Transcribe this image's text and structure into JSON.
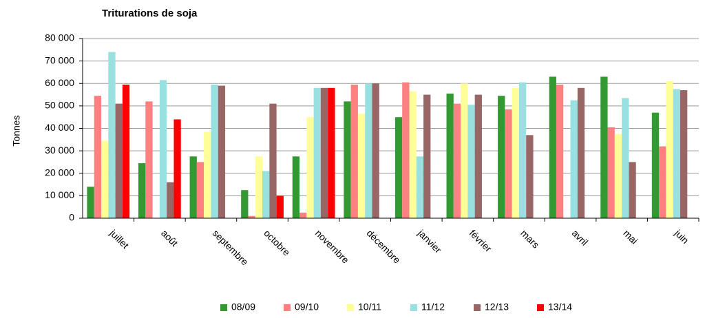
{
  "chart_data": {
    "type": "bar",
    "title": "Triturations de soja",
    "y_label": "Tonnes",
    "categories": [
      "juillet",
      "août",
      "septembre",
      "octobre",
      "novembre",
      "décembre",
      "janvier",
      "février",
      "mars",
      "avril",
      "mai",
      "juin"
    ],
    "series": [
      {
        "name": "08/09",
        "color": "#339933",
        "values": [
          14000,
          24500,
          27500,
          12500,
          27500,
          52000,
          45000,
          55500,
          54500,
          63000,
          63000,
          47000
        ]
      },
      {
        "name": "09/10",
        "color": "#ff8080",
        "values": [
          54500,
          52000,
          25000,
          1000,
          2500,
          59500,
          60500,
          51000,
          48500,
          59500,
          40500,
          32000
        ]
      },
      {
        "name": "10/11",
        "color": "#ffff99",
        "values": [
          34500,
          null,
          38500,
          27500,
          45000,
          46500,
          56500,
          60000,
          58000,
          null,
          37500,
          61000
        ]
      },
      {
        "name": "11/12",
        "color": "#99e0e0",
        "values": [
          74000,
          61500,
          59500,
          21000,
          58000,
          60000,
          27500,
          50500,
          60500,
          52500,
          53500,
          57500
        ]
      },
      {
        "name": "12/13",
        "color": "#996666",
        "values": [
          51000,
          16000,
          59000,
          51000,
          58000,
          60000,
          55000,
          55000,
          37000,
          58000,
          25000,
          57000
        ]
      },
      {
        "name": "13/14",
        "color": "#ff0000",
        "values": [
          59500,
          44000,
          null,
          10000,
          58000,
          null,
          null,
          null,
          null,
          null,
          null,
          null
        ]
      }
    ],
    "ylim": [
      0,
      80000
    ],
    "yticks": [
      {
        "value": 0,
        "label": "0"
      },
      {
        "value": 10000,
        "label": "10 000"
      },
      {
        "value": 20000,
        "label": "20 000"
      },
      {
        "value": 30000,
        "label": "30 000"
      },
      {
        "value": 40000,
        "label": "40 000"
      },
      {
        "value": 50000,
        "label": "50 000"
      },
      {
        "value": 60000,
        "label": "60 000"
      },
      {
        "value": 70000,
        "label": "70 000"
      },
      {
        "value": 80000,
        "label": "80 000"
      }
    ],
    "grid": true,
    "legend": "bottom"
  }
}
